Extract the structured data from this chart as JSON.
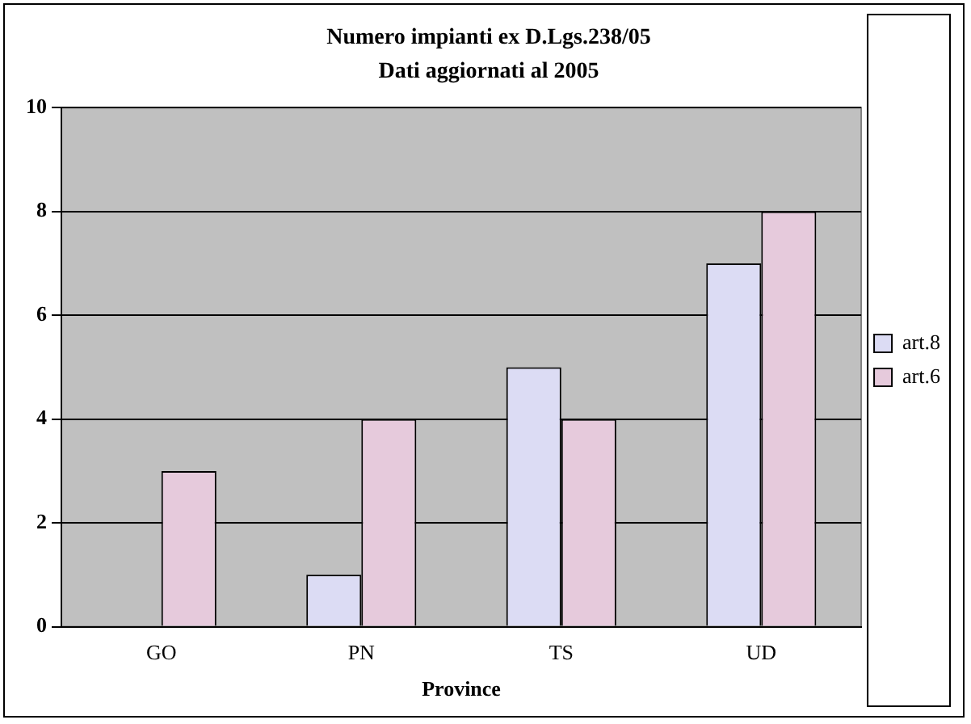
{
  "chart_data": {
    "type": "bar",
    "title": "Numero impianti ex D.Lgs.238/05",
    "subtitle": "Dati aggiornati al 2005",
    "xlabel": "Province",
    "categories": [
      "GO",
      "PN",
      "TS",
      "UD"
    ],
    "series": [
      {
        "name": "art.8",
        "color": "#dcdcf4",
        "values": [
          0,
          1,
          5,
          7
        ]
      },
      {
        "name": "art.6",
        "color": "#e6cadc",
        "values": [
          3,
          4,
          4,
          8
        ]
      }
    ],
    "ylim": [
      0,
      10
    ],
    "yticks": [
      0,
      2,
      4,
      6,
      8,
      10
    ],
    "grid": "y",
    "legend": "right"
  }
}
